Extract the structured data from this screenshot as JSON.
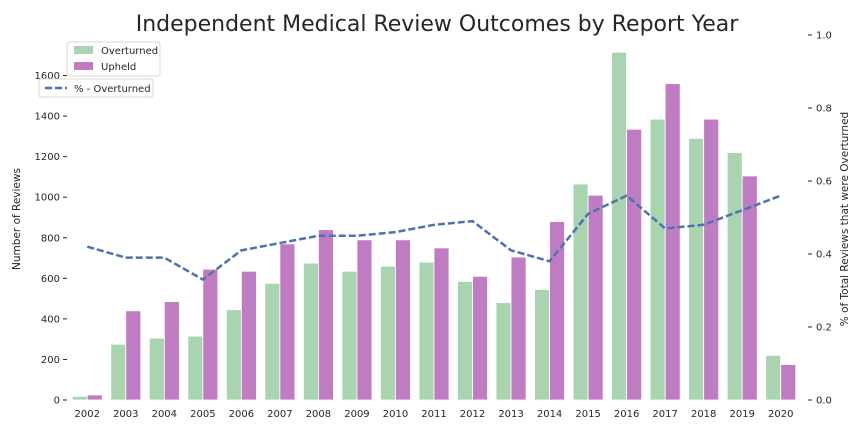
{
  "chart_data": {
    "type": "bar",
    "title": "Independent Medical Review Outcomes by Report Year",
    "ylabel": "Number of Reviews",
    "y2label": "% of Total Reviews that were Overturned",
    "ylim": [
      0,
      1800
    ],
    "y2lim": [
      0,
      1.0
    ],
    "yticks": [
      0,
      200,
      400,
      600,
      800,
      1000,
      1200,
      1400,
      1600
    ],
    "y2ticks": [
      0.0,
      0.2,
      0.4,
      0.6,
      0.8,
      1.0
    ],
    "y2tick_labels": [
      "0.0",
      "0.2",
      "0.4",
      "0.6",
      "0.8",
      "1.0"
    ],
    "grid": false,
    "legend_placement": "top-left",
    "categories": [
      "2002",
      "2003",
      "2004",
      "2005",
      "2006",
      "2007",
      "2008",
      "2009",
      "2010",
      "2011",
      "2012",
      "2013",
      "2014",
      "2015",
      "2016",
      "2017",
      "2018",
      "2019",
      "2020"
    ],
    "series": [
      {
        "name": "Overturned",
        "kind": "bar",
        "color": "#a8d5b0",
        "values": [
          18,
          275,
          305,
          315,
          445,
          575,
          675,
          635,
          660,
          680,
          585,
          480,
          545,
          1065,
          1715,
          1385,
          1290,
          1220,
          220
        ]
      },
      {
        "name": "Upheld",
        "kind": "bar",
        "color": "#c07cc2",
        "values": [
          25,
          440,
          485,
          645,
          635,
          770,
          840,
          790,
          790,
          750,
          610,
          705,
          880,
          1010,
          1335,
          1560,
          1385,
          1105,
          175
        ]
      },
      {
        "name": "% - Overturned",
        "kind": "line",
        "axis": "right",
        "color": "#4c72b0",
        "dash": true,
        "values": [
          0.42,
          0.39,
          0.39,
          0.33,
          0.41,
          0.43,
          0.45,
          0.45,
          0.46,
          0.48,
          0.49,
          0.41,
          0.38,
          0.51,
          0.56,
          0.47,
          0.48,
          0.52,
          0.56
        ]
      }
    ]
  }
}
